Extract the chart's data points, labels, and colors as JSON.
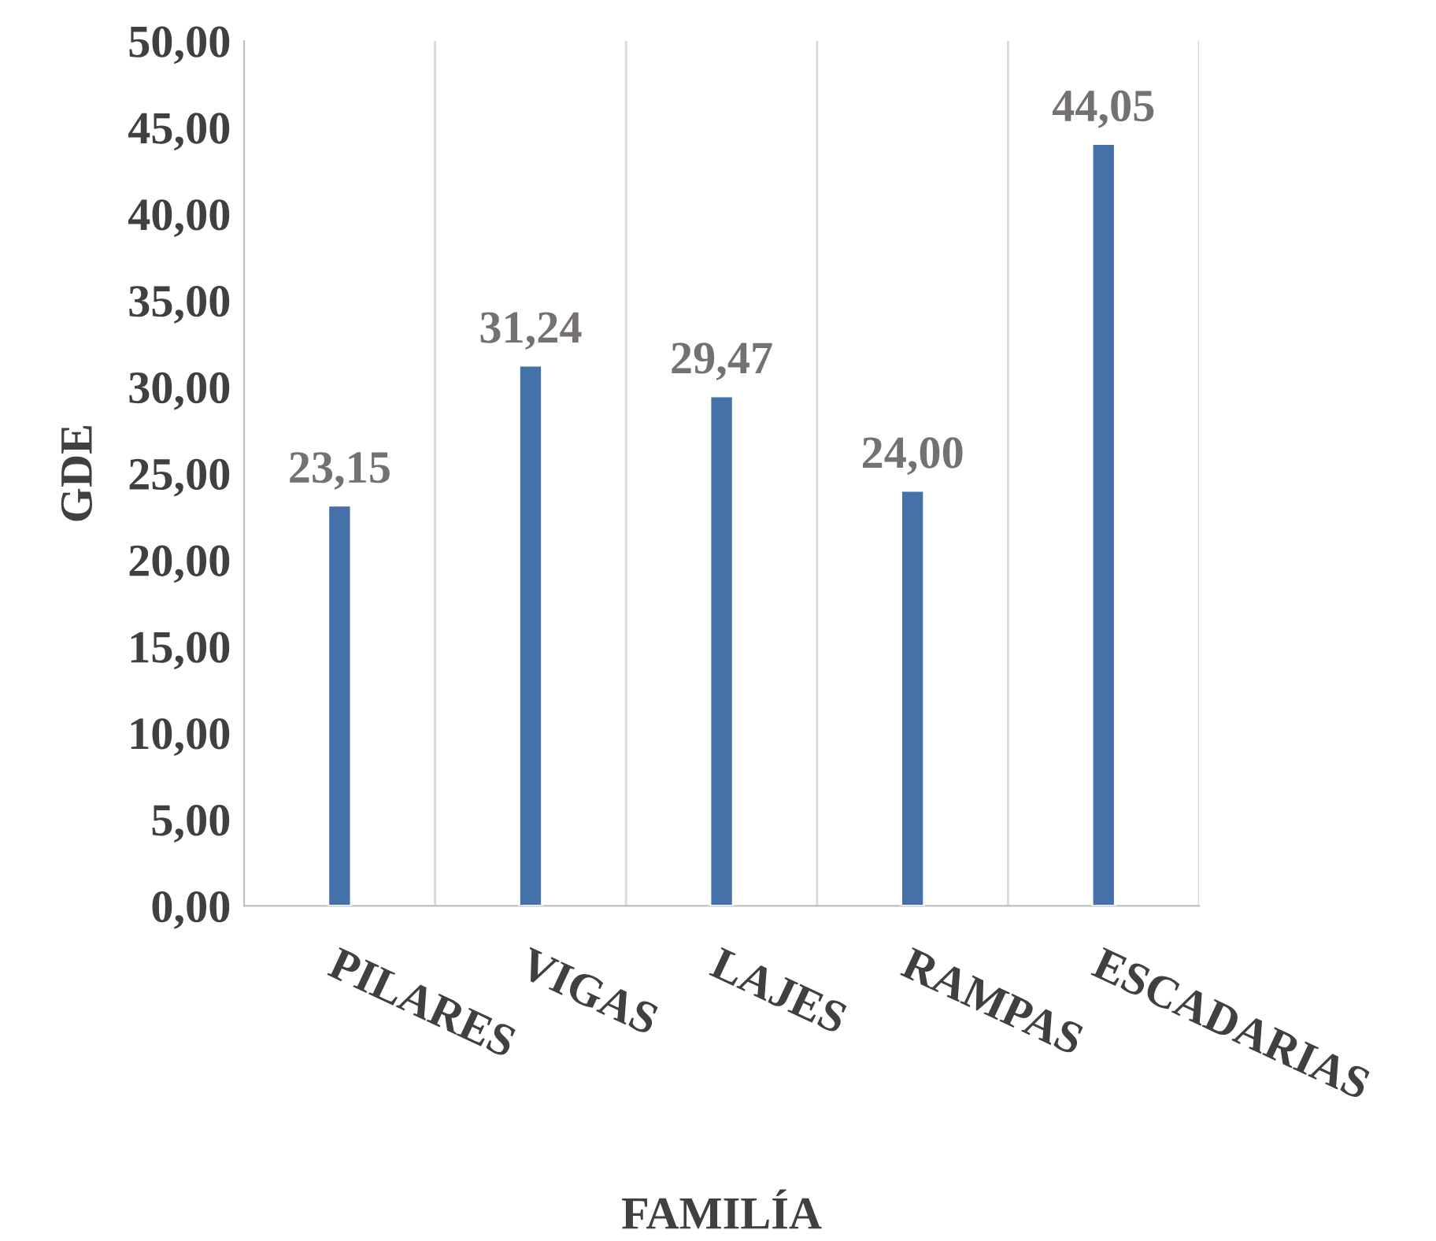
{
  "chart_data": {
    "type": "bar",
    "xlabel": "FAMILÍA",
    "ylabel": "GDE",
    "categories": [
      "PILARES",
      "VIGAS",
      "LAJES",
      "RAMPAS",
      "ESCADARIAS"
    ],
    "values": [
      23.15,
      31.24,
      29.47,
      24.0,
      44.05
    ],
    "value_labels": [
      "23,15",
      "31,24",
      "29,47",
      "24,00",
      "44,05"
    ],
    "color": "#4472a8",
    "ylim": [
      0,
      50
    ],
    "yticks": [
      {
        "value": 0,
        "label": "0,00"
      },
      {
        "value": 5,
        "label": "5,00"
      },
      {
        "value": 10,
        "label": "10,00"
      },
      {
        "value": 15,
        "label": "15,00"
      },
      {
        "value": 20,
        "label": "20,00"
      },
      {
        "value": 25,
        "label": "25,00"
      },
      {
        "value": 30,
        "label": "30,00"
      },
      {
        "value": 35,
        "label": "35,00"
      },
      {
        "value": 40,
        "label": "40,00"
      },
      {
        "value": 45,
        "label": "45,00"
      },
      {
        "value": 50,
        "label": "50,00"
      }
    ],
    "grid": "x",
    "legend": false
  }
}
